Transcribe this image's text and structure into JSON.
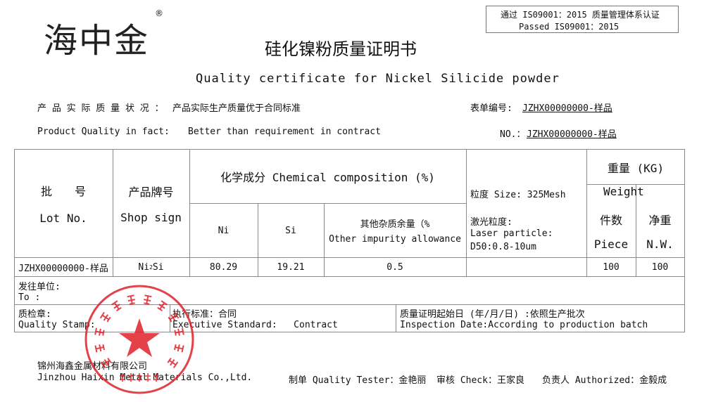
{
  "header": {
    "logo": "海中金",
    "registered_mark": "®",
    "iso_cn": "通过 IS09001：2015 质量管理体系认证",
    "iso_en": "Passed  IS09001：2015",
    "title_cn": "硅化镍粉质量证明书",
    "title_en": "Quality certificate for Nickel Silicide powder"
  },
  "info": {
    "quality_cn_label": "产 品 实 际 质 量 状 况 ：",
    "quality_cn_value": "产品实际生产质量优于合同标准",
    "form_no_label": "表单编号:",
    "form_no_value": "JZHX00000000-样品",
    "quality_en_label": "Product Quality in fact:",
    "quality_en_value": "Better than requirement in contract",
    "no_label": "NO.：",
    "no_value": "JZHX00000000-样品"
  },
  "table": {
    "lot_cn": "批　　号",
    "lot_en": "Lot No.",
    "shop_cn": "产品牌号",
    "shop_en": "Shop sign",
    "chem": "化学成分 Chemical composition (%)",
    "ni": "Ni",
    "si": "Si",
    "other_cn": "其他杂质余量（%",
    "other_en": "Other impurity allowance",
    "size": "粒度 Size: 325Mesh",
    "laser_cn": "激光粒度:",
    "laser_en": "Laser particle:",
    "laser_val": "D50:0.8-10um",
    "weight_cn": "重量 (KG)",
    "weight_en": "Weight",
    "piece_cn": "件数",
    "piece_en": "Piece",
    "nw_cn": "净重",
    "nw_en": "N.W.",
    "row": {
      "lot": "JZHX00000000-样品",
      "shop": "Ni",
      "shop_sub": "2",
      "shop_tail": "Si",
      "ni": "80.29",
      "si": "19.21",
      "other": "0.5",
      "piece": "100",
      "nw": "100"
    },
    "to_cn": "发往单位:",
    "to_en": "To :",
    "stamp_cn": "质检章:",
    "stamp_en": "Quality Stamp:",
    "std_cn": "执行标准：合同",
    "std_en": "Executive Standard:   Contract",
    "date_cn": "质量证明起始日 (年/月/日) :依照生产批次",
    "date_en": "Inspection Date:According to production batch"
  },
  "footer": {
    "company_cn": "锦州海鑫金属材料有限公司",
    "company_en": "Jinzhou Haixin Metal Materials Co.,Ltd.",
    "tester": "制单 Quality Tester：金艳丽",
    "check": "审核 Check：王家良",
    "authorized": "负责人 Authorized：金毅成"
  },
  "seal": {
    "text": "锦州海鑫金属材料有限公司",
    "bottom": "质检专用章",
    "color": "#e0202a"
  }
}
